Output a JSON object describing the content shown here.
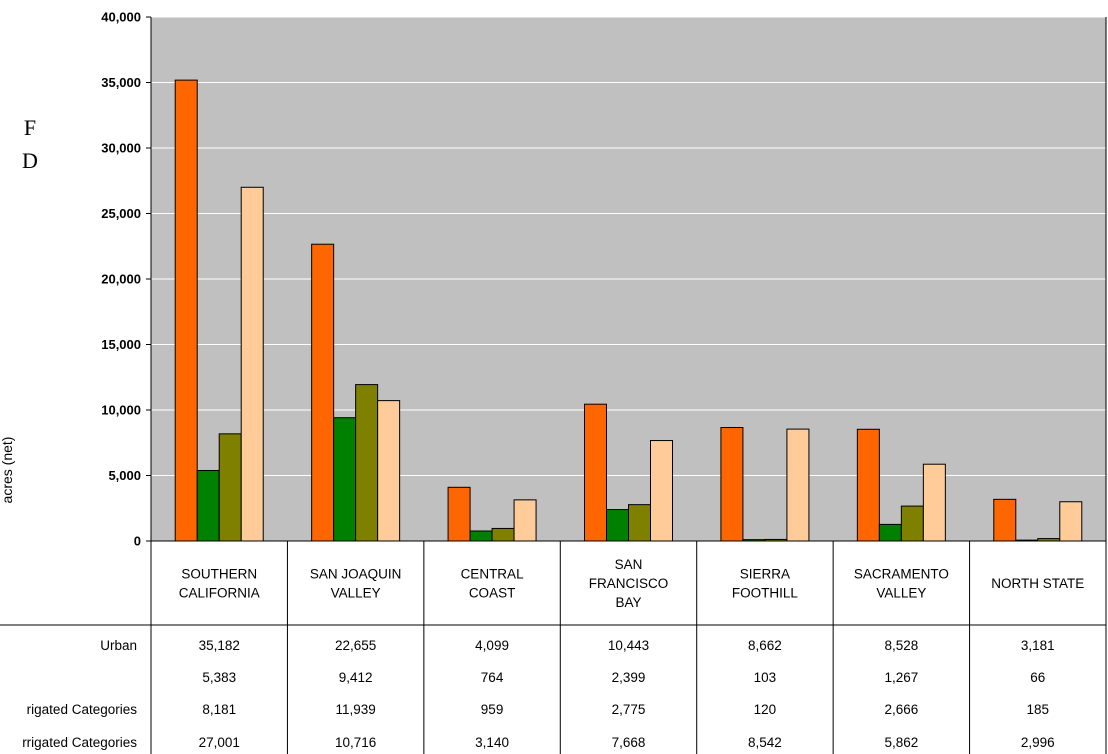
{
  "side_letters": [
    "F",
    "D"
  ],
  "chart_data": {
    "type": "bar",
    "title": "",
    "xlabel": "",
    "ylabel": "acres (net)",
    "ylim": [
      0,
      40000
    ],
    "yticks": [
      0,
      5000,
      10000,
      15000,
      20000,
      25000,
      30000,
      35000,
      40000
    ],
    "ytick_labels": [
      "0",
      "5,000",
      "10,000",
      "15,000",
      "20,000",
      "25,000",
      "30,000",
      "35,000",
      "40,000"
    ],
    "grid": true,
    "categories": [
      [
        "SOUTHERN",
        "CALIFORNIA"
      ],
      [
        "SAN JOAQUIN",
        "VALLEY"
      ],
      [
        "CENTRAL",
        "COAST"
      ],
      [
        "SAN",
        "FRANCISCO",
        "BAY"
      ],
      [
        "SIERRA",
        "FOOTHILL"
      ],
      [
        "SACRAMENTO",
        "VALLEY"
      ],
      [
        "NORTH STATE"
      ]
    ],
    "series": [
      {
        "name": "Urban",
        "label_fragment": "Urban",
        "color": "#FF6600",
        "values": [
          35182,
          22655,
          4099,
          10443,
          8662,
          8528,
          3181
        ],
        "value_labels": [
          "35,182",
          "22,655",
          "4,099",
          "10,443",
          "8,662",
          "8,528",
          "3,181"
        ]
      },
      {
        "label_fragment": "",
        "color": "#008000",
        "values": [
          5383,
          9412,
          764,
          2399,
          103,
          1267,
          66
        ],
        "value_labels": [
          "5,383",
          "9,412",
          "764",
          "2,399",
          "103",
          "1,267",
          "66"
        ]
      },
      {
        "label_fragment": "rigated Categories",
        "color": "#808000",
        "values": [
          8181,
          11939,
          959,
          2775,
          120,
          2666,
          185
        ],
        "value_labels": [
          "8,181",
          "11,939",
          "959",
          "2,775",
          "120",
          "2,666",
          "185"
        ]
      },
      {
        "label_fragment": "rrigated Categories",
        "color": "#FFCC99",
        "values": [
          27001,
          10716,
          3140,
          7668,
          8542,
          5862,
          2996
        ],
        "value_labels": [
          "27,001",
          "10,716",
          "3,140",
          "7,668",
          "8,542",
          "5,862",
          "2,996"
        ]
      }
    ]
  }
}
